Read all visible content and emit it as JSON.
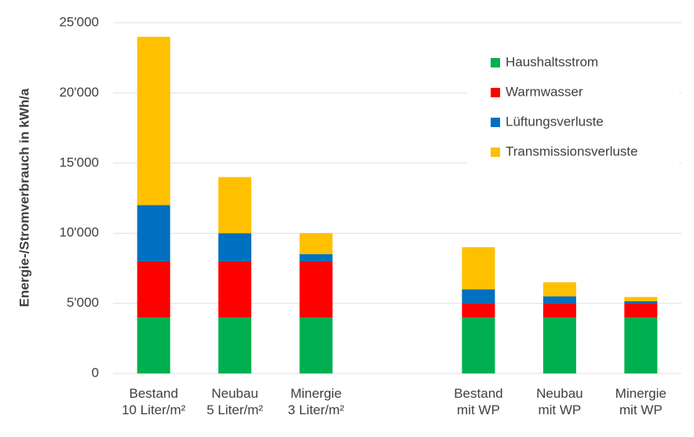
{
  "chart_data": {
    "type": "stacked-bar",
    "y_label": "Energie-/Stromverbrauch  in kWh/a",
    "categories": [
      "Bestand\n10 Liter/m²",
      "Neubau\n5 Liter/m²",
      "Minergie\n3 Liter/m²",
      null,
      "Bestand\nmit WP",
      "Neubau\nmit WP",
      "Minergie\nmit WP"
    ],
    "series": [
      {
        "name": "Haushaltsstrom",
        "color": "#00b050",
        "values": [
          4000,
          4000,
          4000,
          null,
          4000,
          4000,
          4000
        ]
      },
      {
        "name": "Warmwasser",
        "color": "#ff0000",
        "values": [
          4000,
          4000,
          4000,
          null,
          1000,
          1000,
          1000
        ]
      },
      {
        "name": "Lüftungsverluste",
        "color": "#0070c0",
        "values": [
          4000,
          2000,
          500,
          null,
          1000,
          500,
          150
        ]
      },
      {
        "name": "Transmissionsverluste",
        "color": "#ffc000",
        "values": [
          12000,
          4000,
          1500,
          null,
          3000,
          1000,
          300
        ]
      }
    ],
    "ylim": [
      0,
      25000
    ],
    "yticks": [
      0,
      {
        "value": 5000,
        "label": "5'000"
      },
      {
        "value": 10000,
        "label": "10'000"
      },
      {
        "value": 15000,
        "label": "15'000"
      },
      {
        "value": 20000,
        "label": "20'000"
      },
      {
        "value": 25000,
        "label": "25'000"
      }
    ],
    "grid": true,
    "legend": "top-right"
  }
}
